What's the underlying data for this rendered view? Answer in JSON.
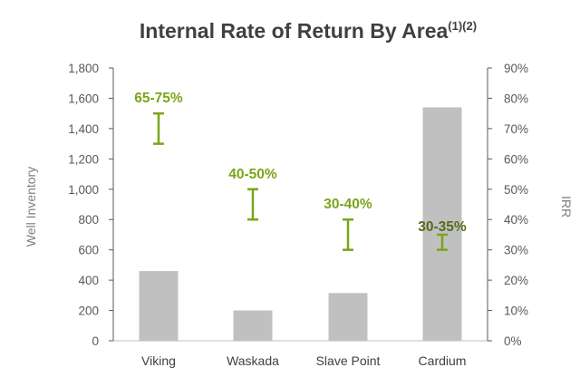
{
  "chart_data": {
    "type": "bar",
    "title": "Internal Rate of Return By Area",
    "title_superscript": "(1)(2)",
    "categories": [
      "Viking",
      "Waskada",
      "Slave Point",
      "Cardium"
    ],
    "series": [
      {
        "name": "Well Inventory",
        "axis": "left",
        "values": [
          460,
          200,
          315,
          1540
        ]
      }
    ],
    "irr_ranges": [
      {
        "category": "Viking",
        "label": "65-75%",
        "low": 65,
        "high": 75
      },
      {
        "category": "Waskada",
        "label": "40-50%",
        "low": 40,
        "high": 50
      },
      {
        "category": "Slave Point",
        "label": "30-40%",
        "low": 30,
        "high": 40
      },
      {
        "category": "Cardium",
        "label": "30-35%",
        "low": 30,
        "high": 35
      }
    ],
    "ylabel": "Well Inventory",
    "ylim": [
      0,
      1800
    ],
    "yticks": [
      "0",
      "200",
      "400",
      "600",
      "800",
      "1,000",
      "1,200",
      "1,400",
      "1,600",
      "1,800"
    ],
    "y2label": "IRR",
    "y2lim": [
      0,
      90
    ],
    "y2ticks": [
      "0%",
      "10%",
      "20%",
      "30%",
      "40%",
      "50%",
      "60%",
      "70%",
      "80%",
      "90%"
    ],
    "grid": false,
    "colors": {
      "bar": "#c0c0c0",
      "irr": "#7aa51b",
      "irr_label_dark": "#556b1a",
      "axis": "#595959",
      "title": "#404040"
    }
  }
}
